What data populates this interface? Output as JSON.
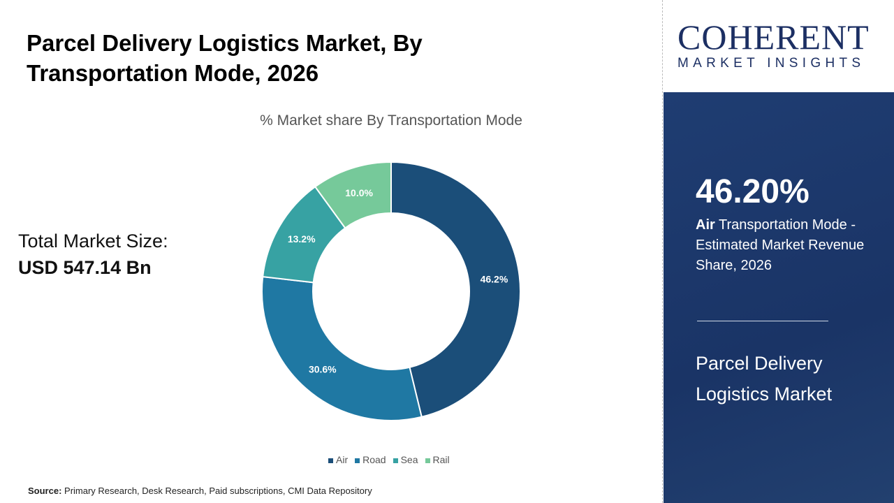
{
  "title": "Parcel Delivery Logistics Market, By Transportation Mode, 2026",
  "total": {
    "label": "Total Market Size:",
    "value": "USD 547.14 Bn"
  },
  "source": {
    "label": "Source:",
    "text": " Primary Research, Desk Research, Paid subscriptions, CMI Data Repository"
  },
  "logo": {
    "name": "COHERENT",
    "tagline": "MARKET INSIGHTS"
  },
  "highlight": {
    "value": "46.20%",
    "bold": "Air",
    "desc": " Transportation Mode - Estimated Market Revenue Share, 2026",
    "market": "Parcel Delivery Logistics Market"
  },
  "chart_data": {
    "type": "pie",
    "subtype": "donut",
    "title": "% Market share By Transportation Mode",
    "categories": [
      "Air",
      "Road",
      "Sea",
      "Rail"
    ],
    "values": [
      46.2,
      30.6,
      13.2,
      10.0
    ],
    "labels": [
      "46.2%",
      "30.6%",
      "13.2%",
      "10.0%"
    ],
    "colors": [
      "#1b4e79",
      "#1f78a3",
      "#37a2a3",
      "#76c99a"
    ],
    "legend": "bottom"
  }
}
